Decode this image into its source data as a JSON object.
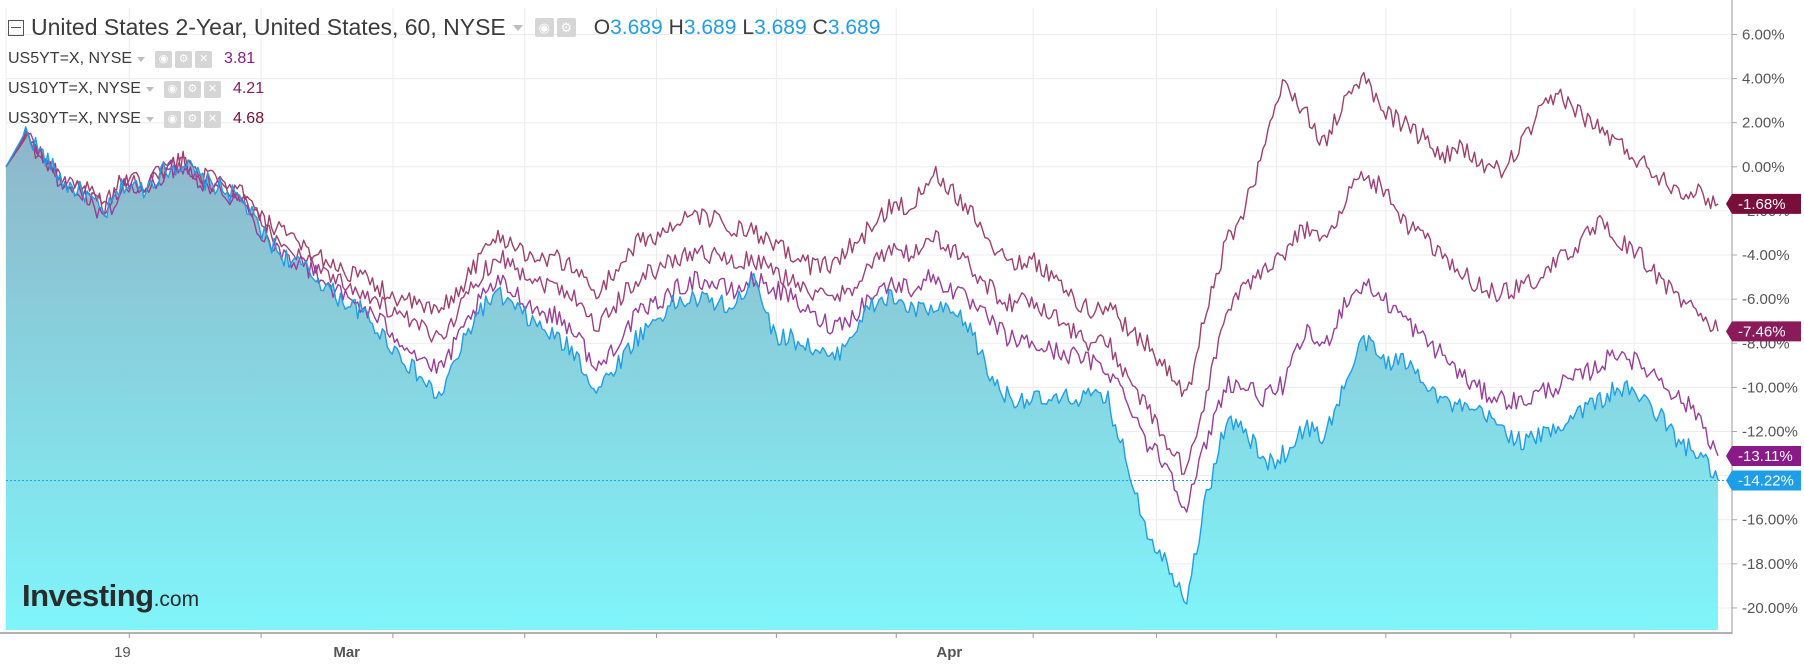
{
  "legend": {
    "main": {
      "title": "United States 2-Year, United States, 60, NYSE",
      "o_label": "O",
      "o_value": "3.689",
      "h_label": "H",
      "h_value": "3.689",
      "l_label": "L",
      "l_value": "3.689",
      "c_label": "C",
      "c_value": "3.689"
    },
    "series": [
      {
        "symbol": "US5YT=X, NYSE",
        "value": "3.81",
        "color": "#8a1a8a"
      },
      {
        "symbol": "US10YT=X, NYSE",
        "value": "4.21",
        "color": "#8a1a5a"
      },
      {
        "symbol": "US30YT=X, NYSE",
        "value": "4.68",
        "color": "#7a0e3a"
      }
    ]
  },
  "logo": {
    "main": "Investing",
    "suffix": ".com"
  },
  "icons": {
    "collapse": "collapse-icon",
    "eye": "eye-icon",
    "settings": "gear-icon",
    "close": "close-icon",
    "caret": "caret-down-icon"
  },
  "chart_data": {
    "type": "area",
    "y_unit": "%",
    "ylim": [
      -21,
      7.2
    ],
    "y_ticks": [
      "6.00%",
      "4.00%",
      "2.00%",
      "0.00%",
      "-2.00%",
      "-4.00%",
      "-6.00%",
      "-8.00%",
      "-10.00%",
      "-12.00%",
      "-14.00%",
      "-16.00%",
      "-18.00%",
      "-20.00%"
    ],
    "x_labels": [
      "19",
      "Mar",
      "Apr"
    ],
    "grid": true,
    "baseline": -14.22,
    "series": [
      {
        "name": "United States 2-Year",
        "color": "#1e9ee8",
        "fill_top": "#8fb5c8",
        "fill_bottom": "#7ff5fa",
        "last_label": "-14.22%",
        "values": [
          0,
          1.6,
          0.4,
          -0.8,
          -1.2,
          -2.2,
          -0.8,
          -1.0,
          -0.2,
          0.2,
          -0.6,
          -1.0,
          -1.5,
          -3.0,
          -4.0,
          -4.5,
          -5.2,
          -6.0,
          -6.5,
          -7.5,
          -8.5,
          -9.5,
          -10.5,
          -8.5,
          -6.5,
          -5.8,
          -6.5,
          -7.2,
          -7.8,
          -8.5,
          -10.2,
          -9.0,
          -7.8,
          -6.9,
          -6.2,
          -6.0,
          -6.1,
          -6.5,
          -4.7,
          -7.6,
          -7.8,
          -8.2,
          -8.8,
          -7.5,
          -6.3,
          -5.9,
          -6.5,
          -6.5,
          -6.6,
          -7.3,
          -9.5,
          -10.5,
          -10.5,
          -10.7,
          -10.5,
          -10.4,
          -10.6,
          -13.5,
          -16.5,
          -18.0,
          -19.5,
          -15.0,
          -11.5,
          -12.0,
          -13.5,
          -13.0,
          -11.8,
          -12.2,
          -10.0,
          -7.8,
          -8.8,
          -8.8,
          -9.5,
          -10.6,
          -11.0,
          -11.2,
          -11.8,
          -12.5,
          -12.2,
          -11.7,
          -11.0,
          -10.6,
          -10.0,
          -10.4,
          -11.2,
          -12.5,
          -13.0,
          -14.2
        ]
      },
      {
        "name": "US5YT=X",
        "color": "#9a3d9a",
        "last_label": "-13.11%",
        "values": [
          0,
          1.5,
          0.3,
          -0.9,
          -1.3,
          -2.3,
          -0.9,
          -1.1,
          -0.3,
          0.1,
          -0.7,
          -1.1,
          -1.6,
          -3.0,
          -3.9,
          -4.4,
          -5.0,
          -5.8,
          -6.3,
          -7.0,
          -7.8,
          -8.6,
          -9.3,
          -7.8,
          -6.2,
          -5.2,
          -5.8,
          -6.5,
          -6.8,
          -7.5,
          -9.3,
          -8.0,
          -6.8,
          -6.2,
          -5.6,
          -5.1,
          -5.3,
          -5.7,
          -5.1,
          -5.5,
          -6.0,
          -6.8,
          -7.2,
          -6.8,
          -5.8,
          -5.3,
          -5.5,
          -5.0,
          -5.5,
          -6.2,
          -7.0,
          -7.8,
          -8.0,
          -8.3,
          -8.5,
          -8.8,
          -9.2,
          -10.5,
          -12.5,
          -13.5,
          -15.5,
          -12.5,
          -9.8,
          -10.0,
          -10.5,
          -9.8,
          -7.5,
          -8.2,
          -6.2,
          -5.3,
          -6.0,
          -6.8,
          -7.8,
          -8.5,
          -9.5,
          -10.2,
          -10.5,
          -10.7,
          -10.2,
          -9.9,
          -9.5,
          -9.0,
          -8.3,
          -9.0,
          -9.5,
          -10.5,
          -11.2,
          -13.1
        ]
      },
      {
        "name": "US10YT=X",
        "color": "#a0407a",
        "last_label": "-7.46%",
        "values": [
          0,
          1.4,
          0.3,
          -0.8,
          -1.2,
          -2.0,
          -0.7,
          -0.9,
          -0.2,
          0.2,
          -0.5,
          -0.9,
          -1.4,
          -2.7,
          -3.5,
          -4.0,
          -4.6,
          -5.2,
          -5.6,
          -6.2,
          -6.8,
          -7.3,
          -7.8,
          -6.5,
          -5.0,
          -4.0,
          -4.6,
          -5.2,
          -5.4,
          -5.9,
          -7.3,
          -6.2,
          -5.1,
          -4.7,
          -4.2,
          -3.8,
          -4.0,
          -4.4,
          -4.2,
          -4.8,
          -5.1,
          -5.8,
          -6.0,
          -5.4,
          -4.4,
          -3.8,
          -4.0,
          -3.2,
          -3.7,
          -4.5,
          -5.5,
          -6.2,
          -6.1,
          -6.5,
          -7.3,
          -8.0,
          -8.0,
          -9.5,
          -11.0,
          -12.5,
          -14.0,
          -10.2,
          -6.6,
          -5.5,
          -4.5,
          -3.8,
          -2.8,
          -3.5,
          -1.5,
          -0.3,
          -1.0,
          -2.5,
          -3.2,
          -4.2,
          -4.8,
          -5.5,
          -5.8,
          -5.4,
          -5.0,
          -4.2,
          -3.4,
          -2.6,
          -3.4,
          -4.0,
          -5.0,
          -6.0,
          -6.5,
          -7.46
        ]
      },
      {
        "name": "US30YT=X",
        "color": "#a0406a",
        "last_label": "-1.68%",
        "values": [
          0,
          1.3,
          0.3,
          -0.7,
          -1.0,
          -1.8,
          -0.5,
          -0.8,
          -0.1,
          0.3,
          -0.4,
          -0.8,
          -1.2,
          -2.4,
          -3.0,
          -3.6,
          -4.1,
          -4.6,
          -5.0,
          -5.5,
          -6.0,
          -6.3,
          -6.6,
          -5.6,
          -4.2,
          -3.1,
          -3.6,
          -4.2,
          -4.2,
          -4.6,
          -5.8,
          -4.7,
          -3.5,
          -3.1,
          -2.7,
          -2.2,
          -2.4,
          -2.8,
          -3.0,
          -3.6,
          -4.0,
          -4.5,
          -4.4,
          -3.6,
          -2.7,
          -1.7,
          -1.9,
          -0.2,
          -1.0,
          -1.9,
          -3.4,
          -4.3,
          -4.2,
          -4.8,
          -5.8,
          -6.5,
          -6.3,
          -7.3,
          -8.0,
          -9.2,
          -10.5,
          -6.5,
          -3.5,
          -1.8,
          1.0,
          4.0,
          2.5,
          1.0,
          3.0,
          4.0,
          2.5,
          2.0,
          1.3,
          0.5,
          0.8,
          0.1,
          -0.2,
          1.0,
          2.5,
          3.3,
          2.4,
          1.7,
          1.0,
          0.3,
          -0.4,
          -1.0,
          -1.2,
          -1.68
        ]
      }
    ]
  }
}
